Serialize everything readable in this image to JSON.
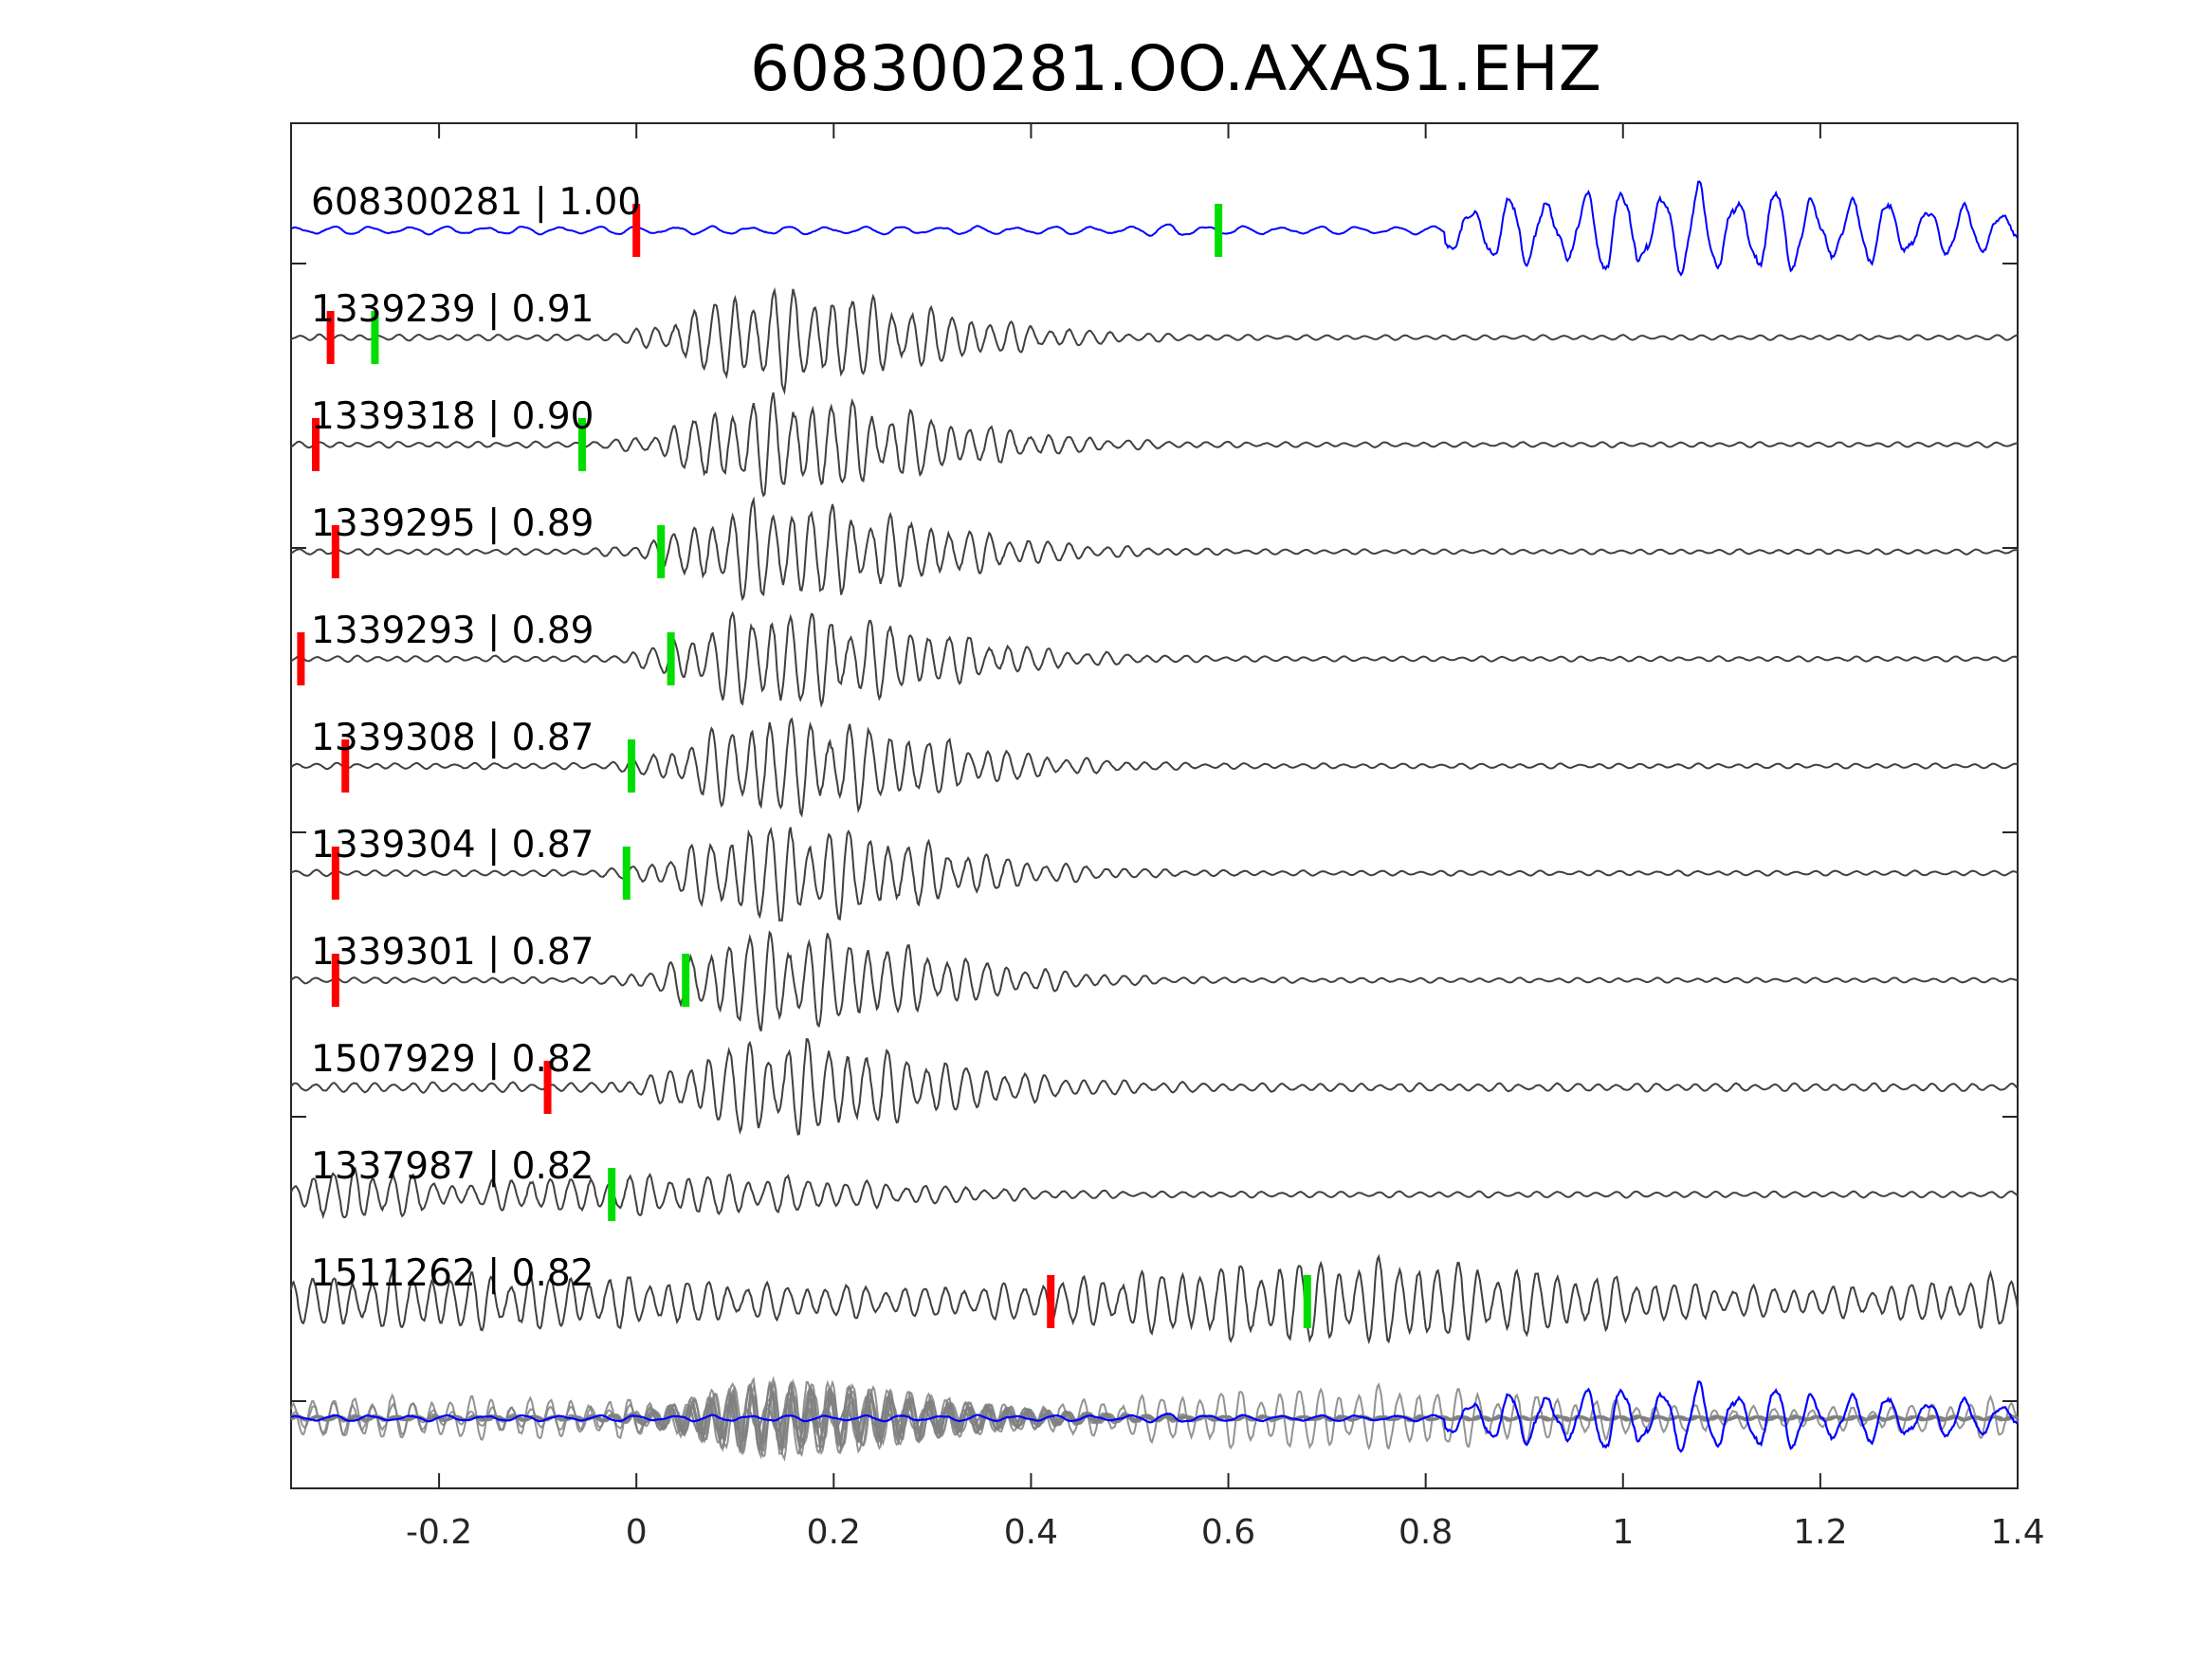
{
  "chart_data": {
    "type": "line",
    "title": "608300281.OO.AXAS1.EHZ",
    "xlabel": "",
    "ylabel": "",
    "xlim": [
      -0.35,
      1.4
    ],
    "x_ticks": [
      -0.2,
      0,
      0.2,
      0.4,
      0.6,
      0.8,
      1,
      1.2,
      1.4
    ],
    "x_tick_labels": [
      "-0.2",
      "0",
      "0.2",
      "0.4",
      "0.6",
      "0.8",
      "1",
      "1.2",
      "1.4"
    ],
    "grid": false,
    "colors": {
      "template": "#0000ff",
      "trace": "#404040",
      "stack": "#808080",
      "p_pick": "#ff0000",
      "s_pick": "#00dd00"
    },
    "traces": [
      {
        "id": "608300281",
        "cc": "1.00",
        "label": "608300281 | 1.00",
        "p_pick": 0.0,
        "s_pick": 0.59,
        "color": "template",
        "onset": 0.82,
        "amp": 0.9,
        "pre": 0.08,
        "mode": "late"
      },
      {
        "id": "1339239",
        "cc": "0.91",
        "label": "1339239 | 0.91",
        "p_pick": -0.31,
        "s_pick": -0.265,
        "color": "trace",
        "onset": 0.0,
        "amp": 0.95,
        "pre": 0.06,
        "mode": "packet"
      },
      {
        "id": "1339318",
        "cc": "0.90",
        "label": "1339318 | 0.90",
        "p_pick": -0.325,
        "s_pick": -0.055,
        "color": "trace",
        "onset": -0.02,
        "amp": 0.95,
        "pre": 0.06,
        "mode": "packet"
      },
      {
        "id": "1339295",
        "cc": "0.89",
        "label": "1339295 | 0.89",
        "p_pick": -0.305,
        "s_pick": 0.025,
        "color": "trace",
        "onset": -0.01,
        "amp": 0.95,
        "pre": 0.06,
        "mode": "packet"
      },
      {
        "id": "1339293",
        "cc": "0.89",
        "label": "1339293 | 0.89",
        "p_pick": -0.34,
        "s_pick": 0.035,
        "color": "trace",
        "onset": 0.0,
        "amp": 0.95,
        "pre": 0.06,
        "mode": "packet"
      },
      {
        "id": "1339308",
        "cc": "0.87",
        "label": "1339308 | 0.87",
        "p_pick": -0.295,
        "s_pick": -0.005,
        "color": "trace",
        "onset": -0.01,
        "amp": 0.95,
        "pre": 0.06,
        "mode": "packet"
      },
      {
        "id": "1339304",
        "cc": "0.87",
        "label": "1339304 | 0.87",
        "p_pick": -0.305,
        "s_pick": -0.01,
        "color": "trace",
        "onset": -0.01,
        "amp": 0.95,
        "pre": 0.06,
        "mode": "packet"
      },
      {
        "id": "1339301",
        "cc": "0.87",
        "label": "1339301 | 0.87",
        "p_pick": -0.305,
        "s_pick": 0.05,
        "color": "trace",
        "onset": 0.0,
        "amp": 0.95,
        "pre": 0.06,
        "mode": "packet"
      },
      {
        "id": "1507929",
        "cc": "0.82",
        "label": "1507929 | 0.82",
        "p_pick": -0.09,
        "s_pick": null,
        "color": "trace",
        "onset": -0.08,
        "amp": 0.9,
        "pre": 0.1,
        "mode": "packet"
      },
      {
        "id": "1337987",
        "cc": "0.82",
        "label": "1337987 | 0.82",
        "p_pick": null,
        "s_pick": -0.025,
        "color": "trace",
        "onset": -0.03,
        "amp": 0.35,
        "pre": 0.55,
        "mode": "early"
      },
      {
        "id": "1511262",
        "cc": "0.82",
        "label": "1511262 | 0.82",
        "p_pick": 0.42,
        "s_pick": 0.68,
        "color": "trace",
        "onset": 0.2,
        "amp": 0.55,
        "pre": 0.3,
        "mode": "noisy"
      }
    ]
  }
}
